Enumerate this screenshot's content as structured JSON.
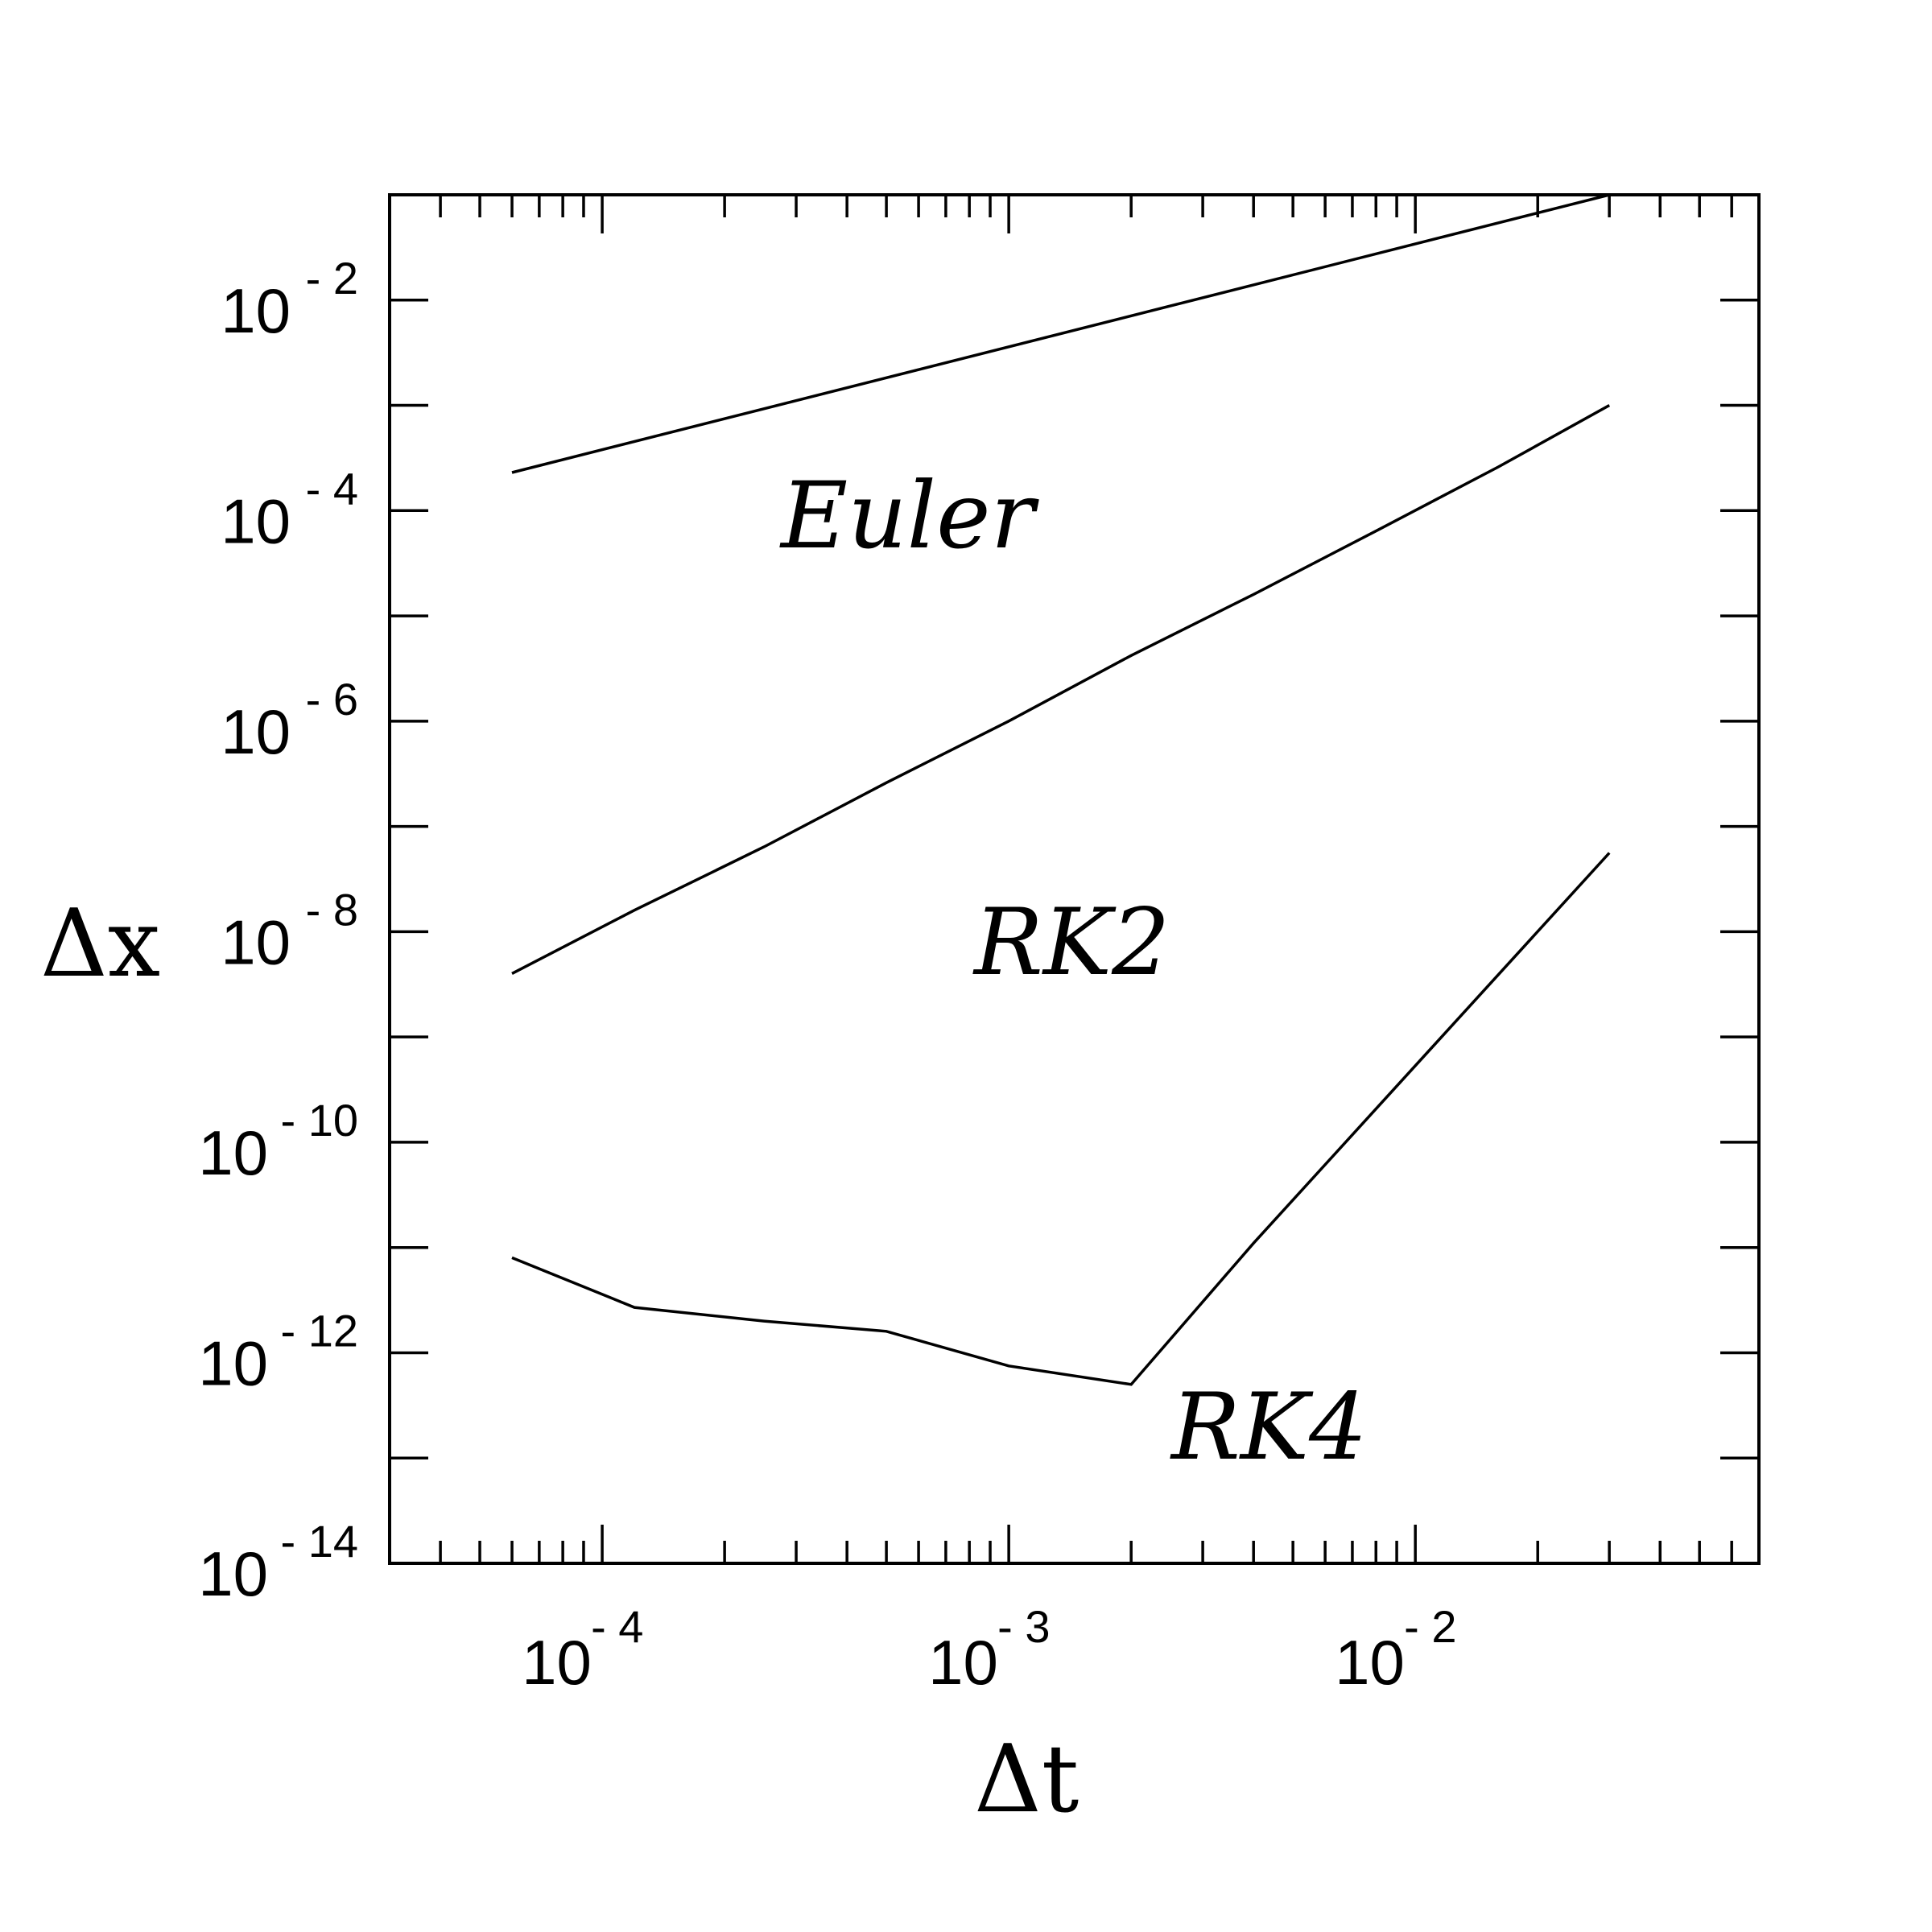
{
  "chart_data": {
    "type": "line",
    "title": "",
    "xlabel": "Δt",
    "ylabel": "Δx",
    "x_scale": "log",
    "y_scale": "log",
    "xlim": [
      3e-05,
      0.07
    ],
    "ylim": [
      1e-14,
      0.1
    ],
    "grid": false,
    "x_ticks": [
      {
        "base": "10",
        "exp": "- 4"
      },
      {
        "base": "10",
        "exp": "- 3"
      },
      {
        "base": "10",
        "exp": "- 2"
      }
    ],
    "y_ticks": [
      {
        "base": "10",
        "exp": "- 2"
      },
      {
        "base": "10",
        "exp": "- 4"
      },
      {
        "base": "10",
        "exp": "- 6"
      },
      {
        "base": "10",
        "exp": "- 8"
      },
      {
        "base": "10",
        "exp": "- 10"
      },
      {
        "base": "10",
        "exp": "- 12"
      },
      {
        "base": "10",
        "exp": "- 14"
      }
    ],
    "series": [
      {
        "name": "Euler",
        "x": [
          6e-05,
          0.03
        ],
        "y": [
          0.00023,
          0.1
        ]
      },
      {
        "name": "RK2",
        "x": [
          6e-05,
          0.00012,
          0.00025,
          0.0005,
          0.001,
          0.002,
          0.004,
          0.008,
          0.016,
          0.03
        ],
        "y": [
          4e-09,
          1.6e-08,
          6.4e-08,
          2.6e-07,
          1e-06,
          4.2e-06,
          1.6e-05,
          6.4e-05,
          0.00026,
          0.001
        ]
      },
      {
        "name": "RK4",
        "x": [
          6e-05,
          0.00012,
          0.00025,
          0.0005,
          0.001,
          0.002,
          0.004,
          0.03
        ],
        "y": [
          8e-12,
          2.7e-12,
          2e-12,
          1.6e-12,
          7.5e-13,
          5e-13,
          1.1e-11,
          5.6e-08
        ]
      }
    ],
    "labels": [
      "Euler",
      "RK2",
      "RK4"
    ]
  }
}
